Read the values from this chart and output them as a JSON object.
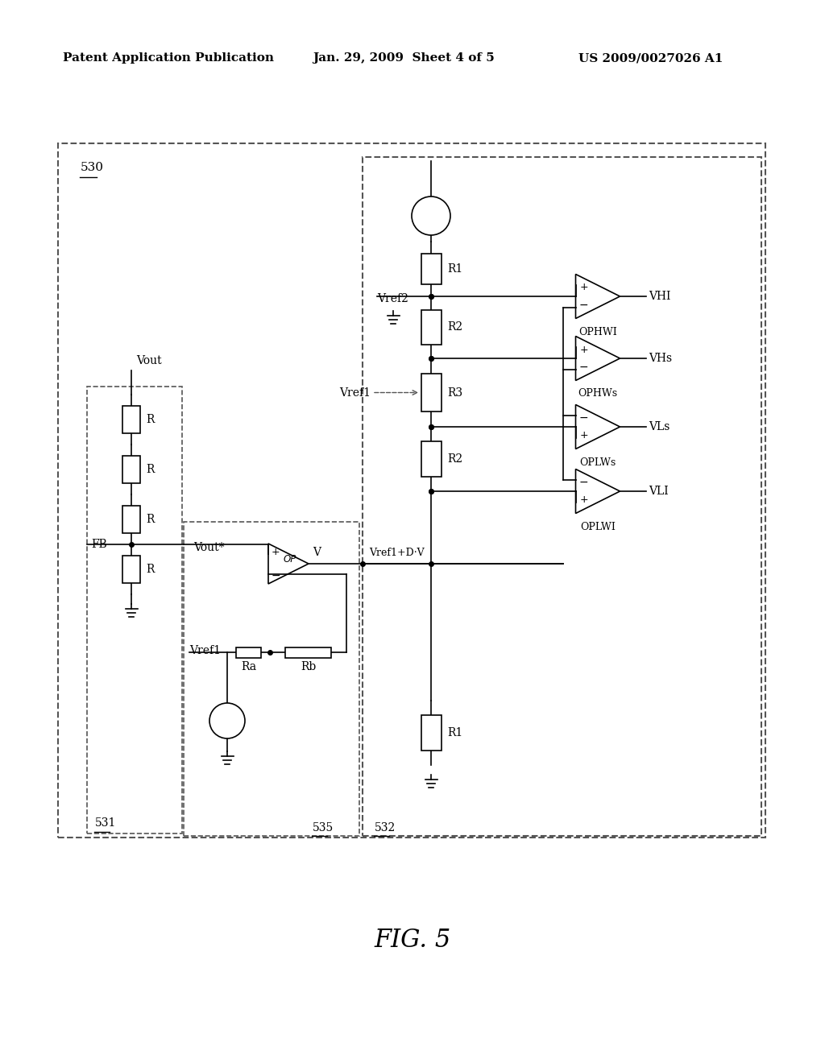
{
  "background_color": "#ffffff",
  "header_left": "Patent Application Publication",
  "header_center": "Jan. 29, 2009  Sheet 4 of 5",
  "header_right": "US 2009/0027026 A1",
  "figure_label": "FIG. 5"
}
